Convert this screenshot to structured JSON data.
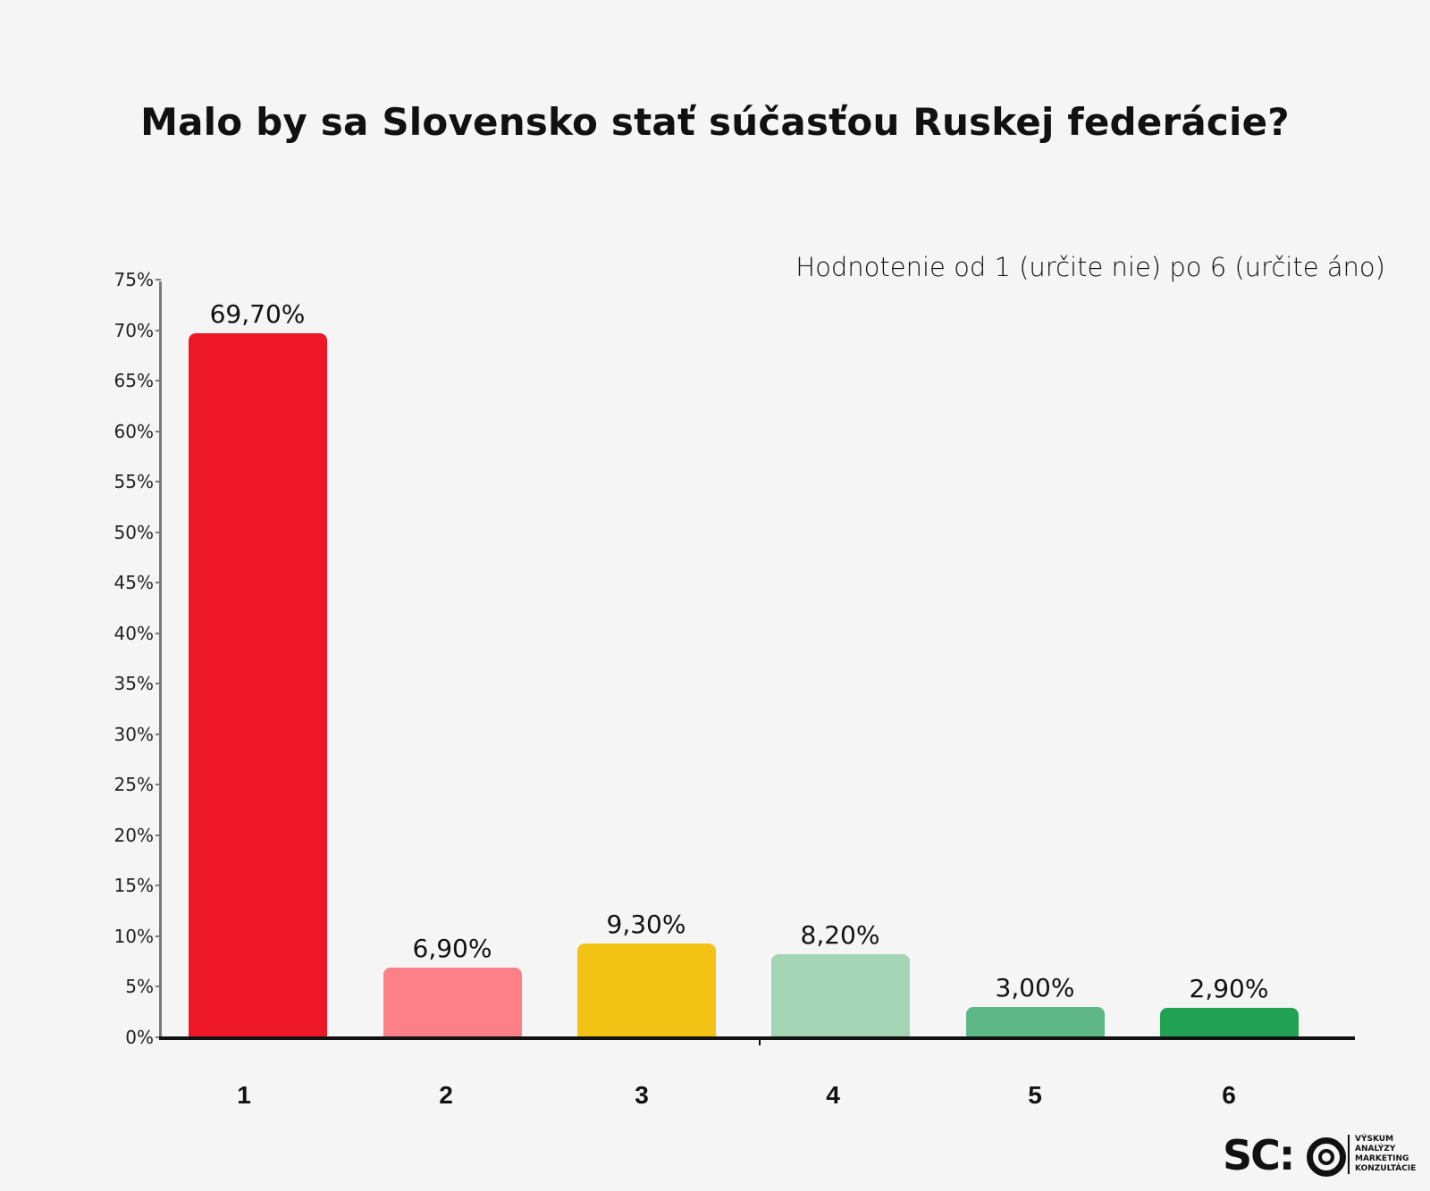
{
  "title": "Malo by sa Slovensko stať súčasťou Ruskej federácie?",
  "subtitle": "Hodnotenie  od 1 (určite nie) po 6 (určite áno)",
  "y_ticks": [
    "0%",
    "5%",
    "10%",
    "15%",
    "20%",
    "25%",
    "30%",
    "35%",
    "40%",
    "45%",
    "50%",
    "55%",
    "60%",
    "65%",
    "70%",
    "75%"
  ],
  "bars": [
    {
      "category": "1",
      "value": 69.7,
      "label": "69,70%",
      "color": "#ed1727"
    },
    {
      "category": "2",
      "value": 6.9,
      "label": "6,90%",
      "color": "#fd7f88"
    },
    {
      "category": "3",
      "value": 9.3,
      "label": "9,30%",
      "color": "#f2c314"
    },
    {
      "category": "4",
      "value": 8.2,
      "label": "8,20%",
      "color": "#a3d4b4"
    },
    {
      "category": "5",
      "value": 3.0,
      "label": "3,00%",
      "color": "#5db886"
    },
    {
      "category": "6",
      "value": 2.9,
      "label": "2,90%",
      "color": "#21a153"
    }
  ],
  "logo": {
    "mark": "SC:",
    "words": [
      "VÝSKUM",
      "ANALÝZY",
      "MARKETING",
      "KONZULTÁCIE"
    ]
  },
  "chart_data": {
    "type": "bar",
    "title": "Malo by sa Slovensko stať súčasťou Ruskej federácie?",
    "subtitle": "Hodnotenie  od 1 (určite nie) po 6 (určite áno)",
    "categories": [
      "1",
      "2",
      "3",
      "4",
      "5",
      "6"
    ],
    "values": [
      69.7,
      6.9,
      9.3,
      8.2,
      3.0,
      2.9
    ],
    "data_labels": [
      "69,70%",
      "6,90%",
      "9,30%",
      "8,20%",
      "3,00%",
      "2,90%"
    ],
    "colors": [
      "#ed1727",
      "#fd7f88",
      "#f2c314",
      "#a3d4b4",
      "#5db886",
      "#21a153"
    ],
    "xlabel": "",
    "ylabel": "",
    "ylim": [
      0,
      75
    ],
    "y_tick_step": 5,
    "y_tick_format": "percent",
    "grid": false,
    "legend": null
  }
}
